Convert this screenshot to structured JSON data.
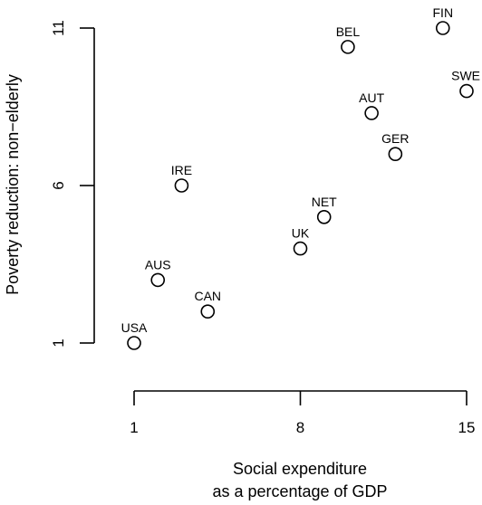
{
  "chart_data": {
    "type": "scatter",
    "title": "",
    "xlabel_lines": [
      "Social expenditure",
      "as a percentage of GDP"
    ],
    "ylabel": "Poverty reduction: non−elderly",
    "xlim": [
      1,
      15
    ],
    "ylim": [
      1,
      11
    ],
    "x_ticks": [
      {
        "value": 1,
        "label": "1"
      },
      {
        "value": 8,
        "label": "8"
      },
      {
        "value": 15,
        "label": "15"
      }
    ],
    "y_ticks": [
      {
        "value": 1,
        "label": "1"
      },
      {
        "value": 6,
        "label": "6"
      },
      {
        "value": 11,
        "label": "11"
      }
    ],
    "points": [
      {
        "label": "USA",
        "x": 1.0,
        "y": 1.0
      },
      {
        "label": "CAN",
        "x": 4.1,
        "y": 2.0
      },
      {
        "label": "AUS",
        "x": 2.0,
        "y": 3.0
      },
      {
        "label": "IRE",
        "x": 3.0,
        "y": 6.0
      },
      {
        "label": "UK",
        "x": 8.0,
        "y": 4.0
      },
      {
        "label": "NET",
        "x": 9.0,
        "y": 5.0
      },
      {
        "label": "BEL",
        "x": 10.0,
        "y": 10.4
      },
      {
        "label": "AUT",
        "x": 11.0,
        "y": 8.3
      },
      {
        "label": "GER",
        "x": 12.0,
        "y": 7.0
      },
      {
        "label": "FIN",
        "x": 14.0,
        "y": 11.0
      },
      {
        "label": "SWE",
        "x": 15.0,
        "y": 9.0
      }
    ],
    "grid": false,
    "legend": "none"
  }
}
